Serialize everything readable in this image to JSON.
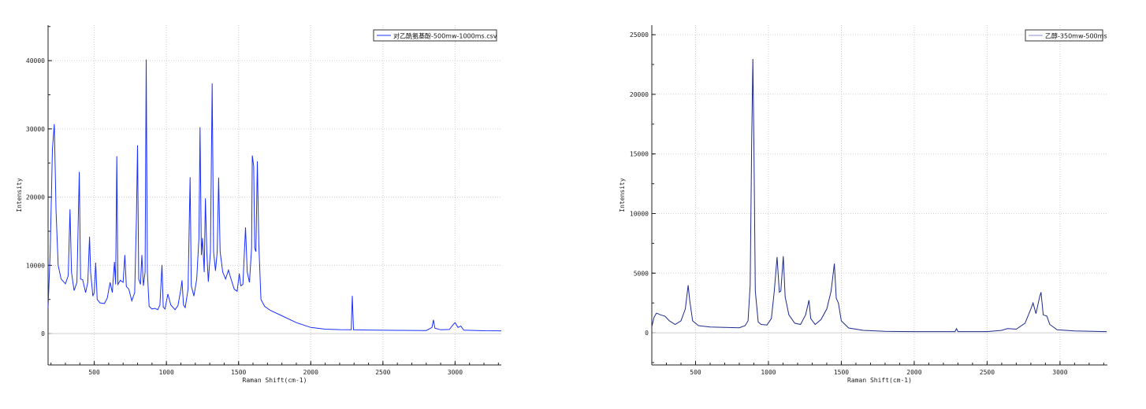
{
  "chart_data": [
    {
      "type": "line",
      "title": "",
      "xlabel": "Raman Shift(cm-1)",
      "ylabel": "Intensity",
      "xlim": [
        180,
        3320
      ],
      "ylim": [
        -4600,
        45200
      ],
      "xticks": [
        500,
        1000,
        1500,
        2000,
        2500,
        3000
      ],
      "yticks": [
        0,
        10000,
        20000,
        30000,
        40000
      ],
      "grid": true,
      "legend_position": "top-right",
      "series": [
        {
          "name": "对乙酰氨基酚-500mw-1000ms.csv",
          "color": "#1a2fff",
          "points": [
            [
              180,
              3800
            ],
            [
              195,
              12000
            ],
            [
              210,
              27000
            ],
            [
              223,
              30700
            ],
            [
              235,
              18000
            ],
            [
              250,
              10000
            ],
            [
              270,
              8000
            ],
            [
              300,
              7300
            ],
            [
              320,
              8500
            ],
            [
              332,
              18200
            ],
            [
              342,
              9000
            ],
            [
              360,
              6300
            ],
            [
              380,
              7500
            ],
            [
              396,
              23700
            ],
            [
              405,
              8000
            ],
            [
              420,
              7900
            ],
            [
              440,
              6000
            ],
            [
              455,
              7500
            ],
            [
              467,
              14200
            ],
            [
              475,
              9000
            ],
            [
              490,
              5500
            ],
            [
              500,
              6000
            ],
            [
              510,
              10400
            ],
            [
              520,
              5000
            ],
            [
              540,
              4500
            ],
            [
              570,
              4400
            ],
            [
              590,
              5200
            ],
            [
              610,
              7500
            ],
            [
              625,
              6000
            ],
            [
              640,
              10500
            ],
            [
              648,
              7200
            ],
            [
              656,
              26000
            ],
            [
              664,
              7200
            ],
            [
              680,
              7800
            ],
            [
              700,
              7500
            ],
            [
              712,
              11500
            ],
            [
              722,
              6900
            ],
            [
              740,
              6500
            ],
            [
              760,
              4800
            ],
            [
              780,
              6000
            ],
            [
              792,
              17000
            ],
            [
              800,
              27600
            ],
            [
              808,
              8000
            ],
            [
              820,
              7200
            ],
            [
              830,
              11500
            ],
            [
              840,
              7000
            ],
            [
              852,
              9000
            ],
            [
              860,
              40150
            ],
            [
              868,
              9000
            ],
            [
              880,
              4000
            ],
            [
              900,
              3600
            ],
            [
              920,
              3700
            ],
            [
              940,
              3500
            ],
            [
              955,
              4200
            ],
            [
              969,
              10060
            ],
            [
              978,
              3900
            ],
            [
              990,
              3600
            ],
            [
              1010,
              5800
            ],
            [
              1030,
              4200
            ],
            [
              1060,
              3500
            ],
            [
              1080,
              4100
            ],
            [
              1100,
              6500
            ],
            [
              1108,
              7800
            ],
            [
              1118,
              4200
            ],
            [
              1130,
              3800
            ],
            [
              1150,
              6500
            ],
            [
              1164,
              22900
            ],
            [
              1172,
              7000
            ],
            [
              1190,
              5500
            ],
            [
              1210,
              8000
            ],
            [
              1225,
              14000
            ],
            [
              1233,
              30240
            ],
            [
              1242,
              11500
            ],
            [
              1250,
              14000
            ],
            [
              1262,
              9000
            ],
            [
              1270,
              19800
            ],
            [
              1280,
              12000
            ],
            [
              1290,
              7600
            ],
            [
              1305,
              12000
            ],
            [
              1317,
              36660
            ],
            [
              1327,
              12000
            ],
            [
              1340,
              9200
            ],
            [
              1352,
              12000
            ],
            [
              1362,
              22860
            ],
            [
              1372,
              12000
            ],
            [
              1390,
              9000
            ],
            [
              1410,
              8000
            ],
            [
              1430,
              9300
            ],
            [
              1445,
              8200
            ],
            [
              1470,
              6500
            ],
            [
              1490,
              6200
            ],
            [
              1505,
              8800
            ],
            [
              1515,
              7000
            ],
            [
              1530,
              7200
            ],
            [
              1548,
              15560
            ],
            [
              1560,
              9000
            ],
            [
              1575,
              7500
            ],
            [
              1590,
              12500
            ],
            [
              1595,
              26100
            ],
            [
              1605,
              24500
            ],
            [
              1612,
              12500
            ],
            [
              1620,
              12000
            ],
            [
              1630,
              25240
            ],
            [
              1640,
              13000
            ],
            [
              1655,
              5000
            ],
            [
              1680,
              4000
            ],
            [
              1720,
              3400
            ],
            [
              1800,
              2600
            ],
            [
              1900,
              1600
            ],
            [
              2000,
              900
            ],
            [
              2100,
              650
            ],
            [
              2200,
              580
            ],
            [
              2280,
              560
            ],
            [
              2288,
              5530
            ],
            [
              2296,
              560
            ],
            [
              2400,
              520
            ],
            [
              2600,
              470
            ],
            [
              2800,
              450
            ],
            [
              2840,
              900
            ],
            [
              2850,
              2000
            ],
            [
              2860,
              800
            ],
            [
              2900,
              550
            ],
            [
              2960,
              600
            ],
            [
              2990,
              1400
            ],
            [
              3000,
              1600
            ],
            [
              3020,
              900
            ],
            [
              3040,
              1100
            ],
            [
              3060,
              500
            ],
            [
              3200,
              420
            ],
            [
              3320,
              400
            ]
          ]
        }
      ]
    },
    {
      "type": "line",
      "title": "",
      "xlabel": "Raman Shift(cm-1)",
      "ylabel": "Intensity",
      "xlim": [
        200,
        3325
      ],
      "ylim": [
        -2700,
        25800
      ],
      "xticks": [
        500,
        1000,
        1500,
        2000,
        2500,
        3000
      ],
      "yticks": [
        0,
        5000,
        10000,
        15000,
        20000,
        25000
      ],
      "grid": true,
      "legend_position": "top-right",
      "series": [
        {
          "name": "乙醇-350mw-500ms",
          "color": "#1c2a8c",
          "points": [
            [
              200,
              500
            ],
            [
              215,
              1300
            ],
            [
              232,
              1650
            ],
            [
              260,
              1500
            ],
            [
              290,
              1400
            ],
            [
              320,
              1000
            ],
            [
              360,
              700
            ],
            [
              400,
              1000
            ],
            [
              430,
              2000
            ],
            [
              449,
              3980
            ],
            [
              460,
              2700
            ],
            [
              480,
              1000
            ],
            [
              520,
              600
            ],
            [
              600,
              480
            ],
            [
              700,
              450
            ],
            [
              800,
              420
            ],
            [
              840,
              600
            ],
            [
              860,
              1000
            ],
            [
              875,
              4000
            ],
            [
              885,
              16000
            ],
            [
              893,
              22960
            ],
            [
              900,
              16000
            ],
            [
              910,
              3500
            ],
            [
              930,
              900
            ],
            [
              950,
              700
            ],
            [
              990,
              650
            ],
            [
              1020,
              1200
            ],
            [
              1040,
              3500
            ],
            [
              1059,
              6350
            ],
            [
              1075,
              3400
            ],
            [
              1085,
              3500
            ],
            [
              1102,
              6420
            ],
            [
              1115,
              3000
            ],
            [
              1140,
              1500
            ],
            [
              1180,
              800
            ],
            [
              1220,
              700
            ],
            [
              1255,
              1500
            ],
            [
              1278,
              2730
            ],
            [
              1290,
              1200
            ],
            [
              1320,
              700
            ],
            [
              1360,
              1100
            ],
            [
              1400,
              2000
            ],
            [
              1430,
              3500
            ],
            [
              1452,
              5800
            ],
            [
              1465,
              2900
            ],
            [
              1480,
              2500
            ],
            [
              1500,
              1000
            ],
            [
              1550,
              400
            ],
            [
              1650,
              200
            ],
            [
              1800,
              120
            ],
            [
              2000,
              100
            ],
            [
              2280,
              100
            ],
            [
              2290,
              350
            ],
            [
              2300,
              100
            ],
            [
              2500,
              100
            ],
            [
              2600,
              200
            ],
            [
              2640,
              350
            ],
            [
              2700,
              300
            ],
            [
              2760,
              800
            ],
            [
              2800,
              2000
            ],
            [
              2815,
              2500
            ],
            [
              2835,
              1600
            ],
            [
              2860,
              3000
            ],
            [
              2870,
              3400
            ],
            [
              2885,
              1500
            ],
            [
              2910,
              1400
            ],
            [
              2930,
              700
            ],
            [
              2980,
              250
            ],
            [
              3100,
              150
            ],
            [
              3320,
              100
            ]
          ]
        }
      ]
    }
  ]
}
